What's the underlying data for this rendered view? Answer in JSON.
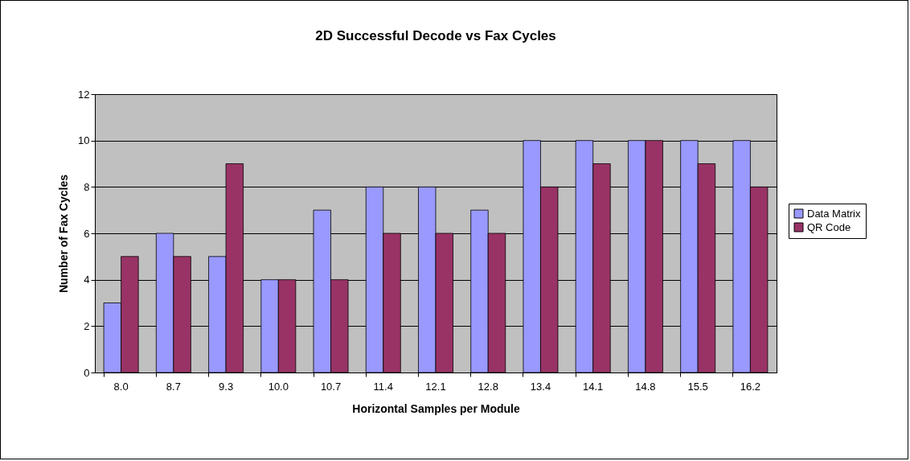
{
  "chart_data": {
    "type": "bar",
    "title": "2D Successful Decode vs Fax Cycles",
    "xlabel": "Horizontal Samples per Module",
    "ylabel": "Number of Fax Cycles",
    "categories": [
      "8.0",
      "8.7",
      "9.3",
      "10.0",
      "10.7",
      "11.4",
      "12.1",
      "12.8",
      "13.4",
      "14.1",
      "14.8",
      "15.5",
      "16.2"
    ],
    "series": [
      {
        "name": "Data Matrix",
        "color": "#9999ff",
        "values": [
          3,
          6,
          5,
          4,
          7,
          8,
          8,
          7,
          10,
          10,
          10,
          10,
          10
        ]
      },
      {
        "name": "QR Code",
        "color": "#993366",
        "values": [
          5,
          5,
          9,
          4,
          4,
          6,
          6,
          6,
          8,
          9,
          10,
          9,
          8
        ]
      }
    ],
    "ylim": [
      0,
      12
    ],
    "yticks": [
      0,
      2,
      4,
      6,
      8,
      10,
      12
    ],
    "grid": "y",
    "legend": "right"
  }
}
